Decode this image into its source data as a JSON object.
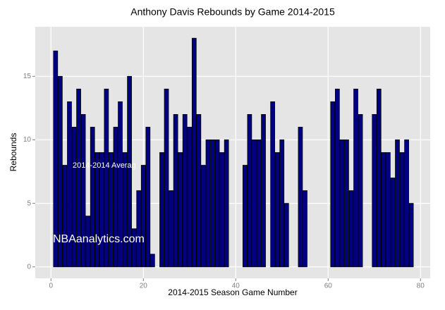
{
  "chart_data": {
    "type": "bar",
    "title": "Anthony Davis Rebounds by Game 2014-2015",
    "x_label": "2014-2015 Season Game Number",
    "y_label": "Rebounds",
    "x": [
      1,
      2,
      3,
      4,
      5,
      6,
      7,
      8,
      9,
      10,
      11,
      12,
      13,
      14,
      15,
      16,
      17,
      18,
      19,
      20,
      21,
      22,
      23,
      24,
      25,
      26,
      27,
      28,
      29,
      30,
      31,
      32,
      33,
      34,
      35,
      36,
      37,
      38,
      39,
      40,
      41,
      42,
      43,
      44,
      45,
      46,
      47,
      48,
      49,
      50,
      51,
      52,
      53,
      54,
      55,
      56,
      57,
      58,
      59,
      60,
      61,
      62,
      63,
      64,
      65,
      66,
      67,
      68,
      69,
      70,
      71,
      72,
      73,
      74,
      75,
      76,
      77,
      78
    ],
    "values": [
      17,
      15,
      8,
      13,
      11,
      14,
      12,
      4,
      11,
      9,
      9,
      14,
      9,
      11,
      13,
      9,
      15,
      3,
      6,
      8,
      11,
      1,
      null,
      9,
      14,
      6,
      12,
      9,
      12,
      11,
      18,
      12,
      8,
      10,
      10,
      10,
      9,
      10,
      null,
      null,
      null,
      8,
      12,
      10,
      10,
      12,
      null,
      13,
      9,
      10,
      5,
      null,
      null,
      11,
      6,
      null,
      null,
      null,
      null,
      null,
      13,
      14,
      10,
      10,
      6,
      14,
      12,
      null,
      null,
      12,
      14,
      9,
      9,
      7,
      10,
      9,
      10,
      5
    ],
    "color": "#000080",
    "xlim": [
      -3.4,
      82.1
    ],
    "xticks": [
      0,
      20,
      40,
      60,
      80
    ],
    "ylim": [
      -0.9,
      18.9
    ],
    "yticks": [
      0,
      5,
      10,
      15
    ],
    "grid": true,
    "annotations": [
      "2014-2014 Averag",
      "NBAanalytics.com"
    ]
  }
}
